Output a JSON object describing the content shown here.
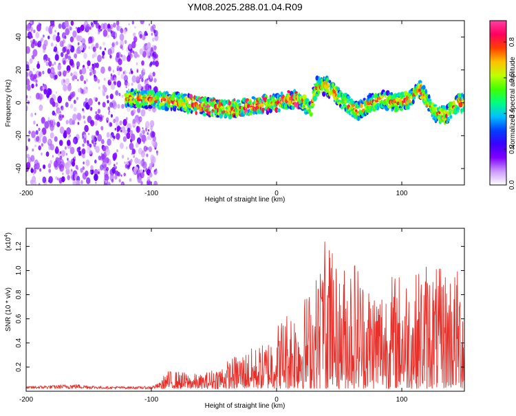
{
  "title": "YM08.2025.288.01.04.R09",
  "colors": {
    "snr_line": "#e8302a",
    "cmap": [
      "#ffffff",
      "#cc99ff",
      "#8000ff",
      "#3a00ff",
      "#0040ff",
      "#00c0ff",
      "#00ff80",
      "#40ff00",
      "#c0ff00",
      "#ffc000",
      "#ff4000",
      "#ff0060",
      "#ff3fa0"
    ]
  },
  "chart_data": [
    {
      "type": "heatmap",
      "title": "YM08.2025.288.01.04.R09",
      "xlabel": "Height of straight line (km)",
      "ylabel": "Frequency (Hz)",
      "xlim": [
        -200,
        150
      ],
      "ylim": [
        -50,
        50
      ],
      "xticks": [
        -200,
        -100,
        0,
        100
      ],
      "xtick_labels": [
        "-200",
        "-100",
        "0",
        "100"
      ],
      "yticks": [
        -40,
        -20,
        0,
        20,
        40
      ],
      "ytick_labels": [
        "-40",
        "-20",
        "0",
        "20",
        "40"
      ],
      "ridge": {
        "x": [
          -120,
          -100,
          -80,
          -60,
          -40,
          -20,
          0,
          10,
          20,
          27,
          32,
          40,
          55,
          65,
          75,
          85,
          95,
          105,
          115,
          125,
          135,
          145
        ],
        "y": [
          3,
          2,
          1,
          -2,
          -4,
          -2,
          0,
          2,
          2,
          -5,
          10,
          10,
          0,
          -5,
          0,
          2,
          0,
          2,
          8,
          -5,
          -8,
          0
        ]
      },
      "colorbar": {
        "label": "Normalized spectral amplitude",
        "range": [
          0,
          0.92
        ],
        "ticks": [
          0.0,
          0.2,
          0.4,
          0.6,
          0.8
        ],
        "tick_labels": [
          "0.0",
          "0.2",
          "0.4",
          "0.6",
          "0.8"
        ]
      }
    },
    {
      "type": "line",
      "xlabel": "Height of straight line (km)",
      "ylabel": "SNR (10 * v/v)",
      "multiplier_label": "(x10",
      "multiplier_exp": "4",
      "multiplier_close": ")",
      "xlim": [
        -200,
        150
      ],
      "ylim": [
        0,
        1.35
      ],
      "xticks": [
        -200,
        -100,
        0,
        100
      ],
      "xtick_labels": [
        "-200",
        "-100",
        "0",
        "100"
      ],
      "yticks": [
        0.2,
        0.4,
        0.6,
        0.8,
        1.0,
        1.2
      ],
      "ytick_labels": [
        "0.2",
        "0.4",
        "0.6",
        "0.8",
        "1.0",
        "1.2"
      ],
      "series": [
        {
          "name": "SNR",
          "envelope_x": [
            -200,
            -160,
            -140,
            -100,
            -92,
            -88,
            -80,
            -60,
            -45,
            -30,
            -10,
            0,
            10,
            20,
            30,
            40,
            50,
            60,
            70,
            80,
            90,
            100,
            110,
            120,
            130,
            140,
            150
          ],
          "envelope_y": [
            0.04,
            0.06,
            0.04,
            0.04,
            0.08,
            0.15,
            0.15,
            0.12,
            0.2,
            0.3,
            0.38,
            0.55,
            0.7,
            0.75,
            0.9,
            1.3,
            0.95,
            1.2,
            0.95,
            0.9,
            0.95,
            1.0,
            0.95,
            1.1,
            1.0,
            1.05,
            0.95
          ]
        }
      ]
    }
  ]
}
